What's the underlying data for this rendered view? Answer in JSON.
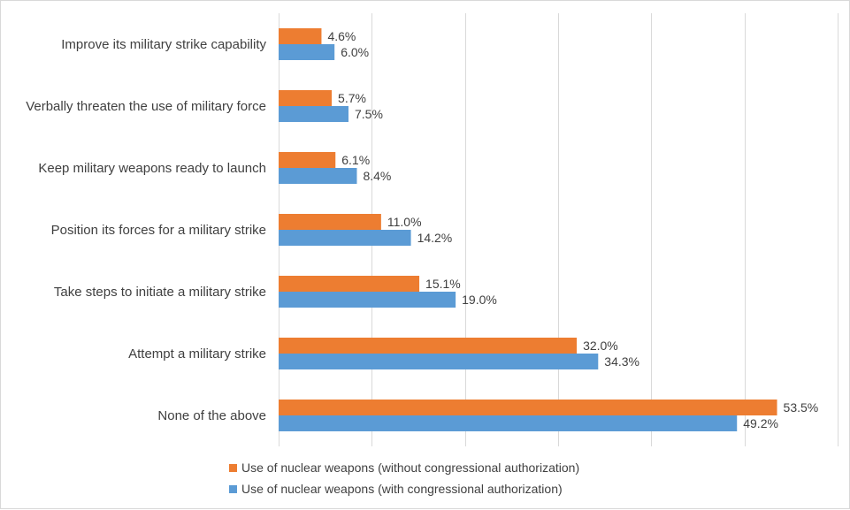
{
  "chart_data": {
    "type": "bar",
    "orientation": "horizontal",
    "categories": [
      "Improve its military strike capability",
      "Verbally threaten the use of military force",
      "Keep military weapons ready to launch",
      "Position its forces for a military strike",
      "Take steps to initiate a military strike",
      "Attempt a military strike",
      "None of the above"
    ],
    "series": [
      {
        "name": "Use of nuclear weapons (without congressional authorization)",
        "color": "#ED7D31",
        "values": [
          4.6,
          5.7,
          6.1,
          11.0,
          15.1,
          32.0,
          53.5
        ],
        "labels": [
          "4.6%",
          "5.7%",
          "6.1%",
          "11.0%",
          "15.1%",
          "32.0%",
          "53.5%"
        ]
      },
      {
        "name": "Use of nuclear weapons (with congressional authorization)",
        "color": "#5B9BD5",
        "values": [
          6.0,
          7.5,
          8.4,
          14.2,
          19.0,
          34.3,
          49.2
        ],
        "labels": [
          "6.0%",
          "7.5%",
          "8.4%",
          "14.2%",
          "19.0%",
          "34.3%",
          "49.2%"
        ]
      }
    ],
    "xlim": [
      0,
      60
    ],
    "grid": true,
    "legend_position": "bottom-left"
  }
}
